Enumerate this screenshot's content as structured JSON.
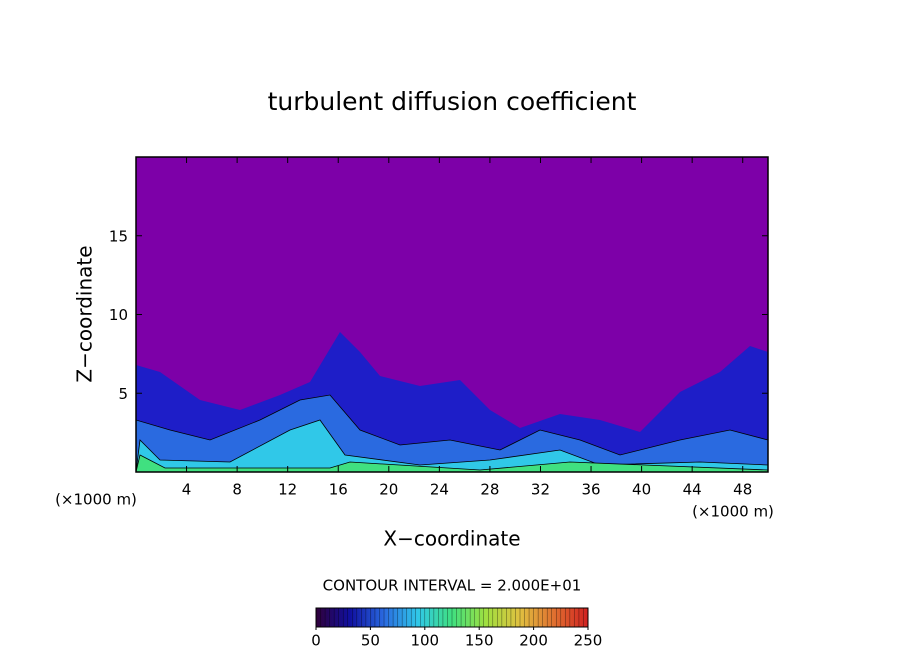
{
  "chart_data": {
    "type": "contour",
    "title": "turbulent diffusion coefficient",
    "x_label": "X−coordinate",
    "y_label": "Z−coordinate",
    "x_unit": "(×1000 m)",
    "xlim": [
      0,
      50
    ],
    "ylim": [
      0,
      20
    ],
    "xticks": [
      4,
      8,
      12,
      16,
      20,
      24,
      28,
      32,
      36,
      40,
      44,
      48
    ],
    "yticks": [
      5,
      10,
      15
    ],
    "background_color": "#7d00a8",
    "contour_interval": "CONTOUR INTERVAL = 2.000E+01",
    "colorbar": {
      "clim": [
        0,
        250
      ],
      "ticks": [
        0,
        50,
        100,
        150,
        200,
        250
      ],
      "colors": [
        "#30003a",
        "#1010a0",
        "#2a6ae0",
        "#30c8e8",
        "#40e080",
        "#a0e040",
        "#e0c040",
        "#e07030",
        "#d02020"
      ]
    }
  }
}
